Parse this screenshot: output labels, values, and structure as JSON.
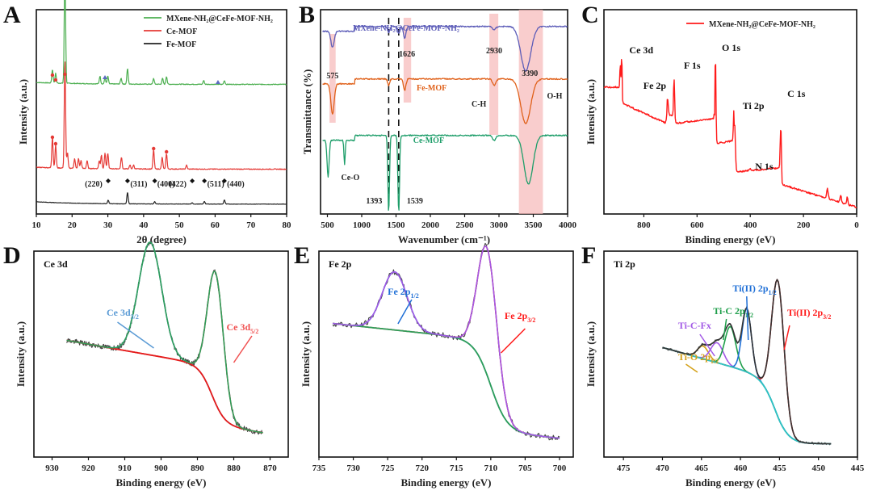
{
  "chart_data": [
    {
      "panel": "A",
      "type": "line",
      "xlabel": "2θ (degree)",
      "ylabel": "Intensity (a.u.)",
      "xlim": [
        10,
        80
      ],
      "xticks": [
        "10",
        "20",
        "30",
        "40",
        "50",
        "60",
        "70",
        "80"
      ],
      "legend": {
        "position": "top-right",
        "entries": [
          {
            "name": "MXene-NH₂@CeFe-MOF-NH₂",
            "color": "#4caf50"
          },
          {
            "name": "Ce-MOF",
            "color": "#e53935"
          },
          {
            "name": "Fe-MOF",
            "color": "#222222"
          }
        ]
      },
      "series": [
        {
          "name": "MXene-NH₂@CeFe-MOF-NH₂",
          "color": "#4caf50",
          "offset": 2,
          "peaks": [
            [
              14.5,
              0.35
            ],
            [
              15.4,
              0.25
            ],
            [
              18.0,
              3.0
            ],
            [
              27.8,
              0.2
            ],
            [
              29.2,
              0.15
            ],
            [
              30.0,
              0.2
            ],
            [
              33.7,
              0.15
            ],
            [
              35.5,
              0.4
            ],
            [
              42.8,
              0.15
            ],
            [
              45.3,
              0.15
            ],
            [
              46.4,
              0.2
            ],
            [
              56.8,
              0.1
            ],
            [
              62.6,
              0.1
            ]
          ]
        },
        {
          "name": "Ce-MOF",
          "color": "#e53935",
          "offset": 1,
          "peaks": [
            [
              14.5,
              0.8
            ],
            [
              15.4,
              0.6
            ],
            [
              18.0,
              2.8
            ],
            [
              18.7,
              0.4
            ],
            [
              20.7,
              0.25
            ],
            [
              21.8,
              0.25
            ],
            [
              22.5,
              0.2
            ],
            [
              24.2,
              0.2
            ],
            [
              27.6,
              0.2
            ],
            [
              28.2,
              0.35
            ],
            [
              29.2,
              0.4
            ],
            [
              30.0,
              0.4
            ],
            [
              33.8,
              0.3
            ],
            [
              36.2,
              0.1
            ],
            [
              37.2,
              0.1
            ],
            [
              42.8,
              0.5
            ],
            [
              45.2,
              0.3
            ],
            [
              46.4,
              0.4
            ],
            [
              52.0,
              0.1
            ]
          ]
        },
        {
          "name": "Fe-MOF",
          "color": "#222222",
          "offset": 0,
          "peaks": [
            [
              30.1,
              0.18
            ],
            [
              35.5,
              0.6
            ],
            [
              43.1,
              0.12
            ],
            [
              53.6,
              0.06
            ],
            [
              57.0,
              0.14
            ],
            [
              62.6,
              0.22
            ]
          ]
        }
      ],
      "annotations": [
        "(220)",
        "(311)",
        "(400)",
        "(422)",
        "(511)",
        "(440)"
      ],
      "annotation_x": [
        30.1,
        35.5,
        43.1,
        53.6,
        57.0,
        62.6
      ],
      "markers": {
        "circle": "#e53935",
        "triangle": "#5c6bc0",
        "diamond": "#111111"
      }
    },
    {
      "panel": "B",
      "type": "line",
      "xlabel": "Wavenumber (cm⁻¹)",
      "ylabel": "Transmittance (%)",
      "xlim": [
        400,
        4000
      ],
      "xticks": [
        "500",
        "1000",
        "1500",
        "2000",
        "2500",
        "3000",
        "3500",
        "4000"
      ],
      "series": [
        {
          "name": "MXene-NH₂@CeFe-MOF-NH₂",
          "color": "#5c5cb8"
        },
        {
          "name": "Fe-MOF",
          "color": "#e0611a"
        },
        {
          "name": "Ce-MOF",
          "color": "#1e9e6a"
        }
      ],
      "highlight_bands": [
        [
          530,
          620
        ],
        [
          1610,
          1720
        ],
        [
          2860,
          2990
        ],
        [
          3290,
          3640
        ]
      ],
      "dashed_lines": [
        1393,
        1539
      ],
      "annotations": {
        "a575": "575",
        "a1626": "1626",
        "a2930": "2930",
        "a3390": "3390",
        "a1393": "1393",
        "a1539": "1539",
        "ch": "C-H",
        "oh": "O-H",
        "ceo": "Ce-O",
        "s1": "MXene-NH₂@CeFe-MOF-NH₂",
        "s2": "Fe-MOF",
        "s3": "Ce-MOF"
      }
    },
    {
      "panel": "C",
      "type": "line",
      "xlabel": "Binding energy (eV)",
      "ylabel": "Intensity (a.u.)",
      "xlim": [
        950,
        0
      ],
      "xticks": [
        "800",
        "600",
        "400",
        "200",
        "0"
      ],
      "legend": {
        "position": "top-right",
        "entries": [
          {
            "name": "MXene-NH₂@CeFe-MOF-NH₂",
            "color": "#ff1a1a"
          }
        ]
      },
      "peak_labels": [
        {
          "label": "Ce 3d",
          "x": 885
        },
        {
          "label": "Fe 2p",
          "x": 711
        },
        {
          "label": "F 1s",
          "x": 686
        },
        {
          "label": "O 1s",
          "x": 531
        },
        {
          "label": "Ti 2p",
          "x": 459
        },
        {
          "label": "C 1s",
          "x": 285
        },
        {
          "label": "N 1s",
          "x": 400
        }
      ]
    },
    {
      "panel": "D",
      "type": "line",
      "title": "Ce 3d",
      "xlabel": "Binding energy (eV)",
      "ylabel": "Intensity (a.u.)",
      "xlim": [
        935,
        865
      ],
      "xticks": [
        "930",
        "920",
        "910",
        "900",
        "890",
        "880",
        "870"
      ],
      "peaks": [
        {
          "label": "Ce 3d3/2",
          "center": 903,
          "color": "#5b9bd5"
        },
        {
          "label": "Ce 3d5/2",
          "center": 885,
          "color": "#f05050"
        }
      ],
      "labels": {
        "p1": "Ce 3d",
        "p1sub": "3/2",
        "p2": "Ce 3d",
        "p2sub": "5/2"
      }
    },
    {
      "panel": "E",
      "type": "line",
      "title": "Fe 2p",
      "xlabel": "Binding energy (eV)",
      "ylabel": "Intensity (a.u.)",
      "xlim": [
        735,
        698
      ],
      "xticks": [
        "735",
        "730",
        "725",
        "720",
        "715",
        "710",
        "705",
        "700"
      ],
      "peaks": [
        {
          "label": "Fe 2p1/2",
          "center": 724,
          "color": "#1f6fd6"
        },
        {
          "label": "Fe 2p3/2",
          "center": 710.5,
          "color": "#ff1a1a"
        }
      ],
      "labels": {
        "p1": "Fe 2p",
        "p1sub": "1/2",
        "p2": "Fe 2p",
        "p2sub": "3/2"
      }
    },
    {
      "panel": "F",
      "type": "line",
      "title": "Ti 2p",
      "xlabel": "Binding energy (eV)",
      "ylabel": "Intensity (a.u.)",
      "xlim": [
        477.5,
        445
      ],
      "xticks": [
        "475",
        "470",
        "465",
        "460",
        "455",
        "450",
        "445"
      ],
      "peaks": [
        {
          "label": "Ti-O 2p1/2",
          "center": 464.8,
          "color": "#d4a017"
        },
        {
          "label": "Ti-C-Fx",
          "center": 463.0,
          "color": "#a259e6"
        },
        {
          "label": "Ti-C 2p1/2",
          "center": 461.3,
          "color": "#1e9e4a"
        },
        {
          "label": "Ti(II) 2p1/2",
          "center": 459.2,
          "color": "#1f6fd6"
        },
        {
          "label": "Ti(II) 2p3/2",
          "center": 455.2,
          "color": "#ff1a1a"
        }
      ],
      "labels": {
        "tio": "Ti-O 2p",
        "tiosub": "1/2",
        "ticfx": "Ti-C-Fx",
        "tic": "Ti-C 2p",
        "ticsub": "1/2",
        "ti2a": "Ti(II) 2p",
        "ti2asub": "1/2",
        "ti2b": "Ti(II) 2p",
        "ti2bsub": "3/2"
      }
    }
  ],
  "panel_letters": [
    "A",
    "B",
    "C",
    "D",
    "E",
    "F"
  ]
}
